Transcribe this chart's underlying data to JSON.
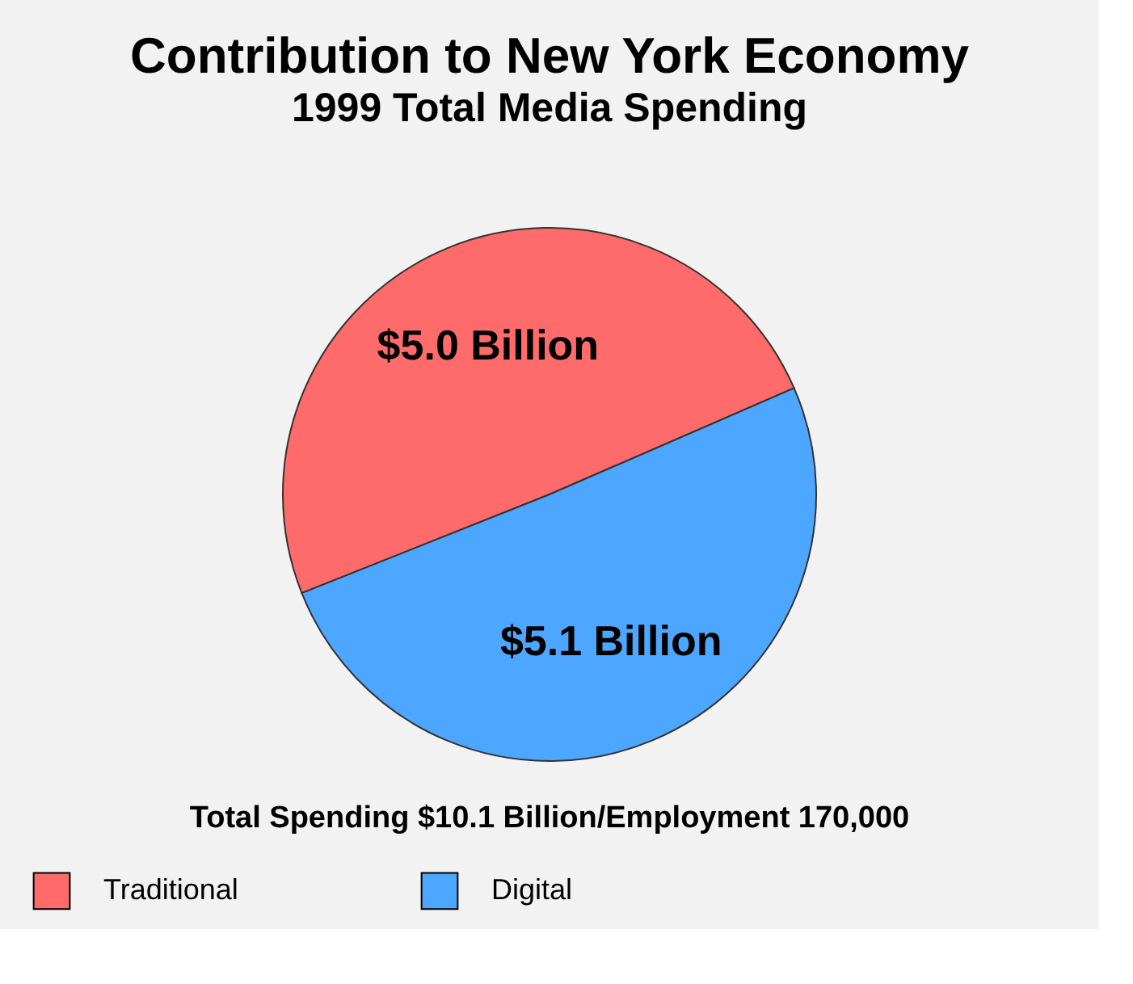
{
  "chart_data": {
    "type": "pie",
    "title": "Contribution to New York Economy",
    "subtitle": "1999 Total Media Spending",
    "categories": [
      "Traditional",
      "Digital"
    ],
    "values": [
      5.0,
      5.1
    ],
    "colors": [
      "#ff6b6b",
      "#4da6ff"
    ],
    "value_labels": [
      "$5.0 Billion",
      "$5.1 Billion"
    ],
    "annotations": [
      "Total Spending $10.1 Billion/Employment 170,000"
    ],
    "legend": "bottom"
  }
}
